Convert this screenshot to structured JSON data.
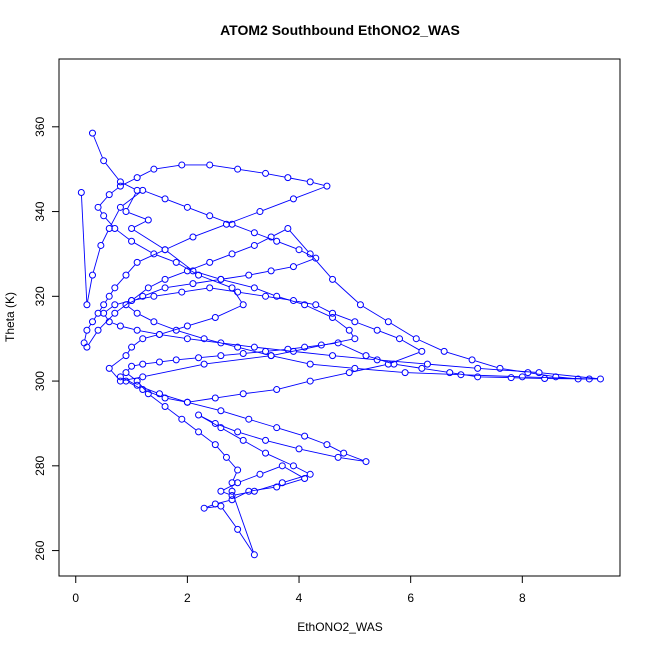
{
  "chart_data": {
    "type": "scatter",
    "title": "ATOM2 Southbound EthONO2_WAS",
    "xlabel": "EthONO2_WAS",
    "ylabel": "Theta (K)",
    "xlim": [
      -0.3,
      9.75
    ],
    "ylim": [
      254,
      376
    ],
    "xticks": [
      0,
      2,
      4,
      6,
      8
    ],
    "yticks": [
      260,
      280,
      300,
      320,
      340,
      360
    ],
    "xtick_labels": [
      "0",
      "2",
      "4",
      "6",
      "8"
    ],
    "ytick_labels": [
      "260",
      "280",
      "300",
      "320",
      "340",
      "360"
    ],
    "color": "#0000ff",
    "grid": false,
    "style": "points connected by lines",
    "series": [
      {
        "name": "EthONO2_WAS",
        "x": [
          0.3,
          0.5,
          0.8,
          1.1,
          0.9,
          1.3,
          1.0,
          1.6,
          2.1,
          2.6,
          3.2,
          3.6,
          4.1,
          4.6,
          4.9,
          5.0,
          3.5,
          2.3,
          1.2,
          0.8,
          0.6,
          0.9,
          1.0,
          1.2,
          1.5,
          2.0,
          2.5,
          3.0,
          2.8,
          2.2,
          1.8,
          1.4,
          1.0,
          0.7,
          0.5,
          0.4,
          0.6,
          0.8,
          1.1,
          1.4,
          1.9,
          2.4,
          2.9,
          3.4,
          3.8,
          4.2,
          4.5,
          3.9,
          3.3,
          2.7,
          2.1,
          1.6,
          1.1,
          0.9,
          0.7,
          0.6,
          0.5,
          0.4,
          0.3,
          0.2,
          0.15,
          0.2,
          0.4,
          0.7,
          1.0,
          1.3,
          1.6,
          2.0,
          2.4,
          2.8,
          3.2,
          3.5,
          3.8,
          4.2,
          4.6,
          5.1,
          5.6,
          6.1,
          6.6,
          7.1,
          7.6,
          8.1,
          8.6,
          9.0,
          9.4,
          8.3,
          7.2,
          6.3,
          5.4,
          4.6,
          3.9,
          3.2,
          2.6,
          2.0,
          1.5,
          1.1,
          0.8,
          0.6,
          0.5,
          0.7,
          1.0,
          1.4,
          1.9,
          2.4,
          2.9,
          3.4,
          3.9,
          4.3,
          4.6,
          5.0,
          5.4,
          5.8,
          6.2,
          5.6,
          4.9,
          4.2,
          3.6,
          3.0,
          2.5,
          2.0,
          1.6,
          1.2,
          0.9,
          0.8,
          1.1,
          1.5,
          2.0,
          2.6,
          3.1,
          3.6,
          4.1,
          4.5,
          4.8,
          5.2,
          4.7,
          4.0,
          3.4,
          2.9,
          2.5,
          2.2,
          2.6,
          3.0,
          3.4,
          3.9,
          4.2,
          3.7,
          3.2,
          2.8,
          2.6,
          2.9,
          3.3,
          3.7,
          4.1,
          3.6,
          3.1,
          2.8,
          2.5,
          2.3,
          2.6,
          2.9,
          3.2,
          2.8,
          2.8,
          2.9,
          2.7,
          2.5,
          2.2,
          1.9,
          1.6,
          1.3,
          1.1,
          0.9,
          1.0,
          1.2,
          1.5,
          1.8,
          2.2,
          2.6,
          3.0,
          3.4,
          3.8,
          4.1,
          4.4,
          4.7,
          5.2,
          5.7,
          6.2,
          6.7,
          7.2,
          7.8,
          8.4,
          9.2,
          8.0,
          6.9,
          5.9,
          5.0,
          4.2,
          3.5,
          2.9,
          2.3,
          1.8,
          1.4,
          1.1,
          0.9,
          1.2,
          1.6,
          2.1,
          2.6,
          3.1,
          3.5,
          3.9,
          4.3,
          4.0,
          3.6,
          3.2,
          2.8,
          2.4,
          2.0,
          1.6,
          1.2,
          0.8,
          0.6,
          0.45,
          0.3,
          0.2,
          0.1
        ],
        "y": [
          358.5,
          352,
          347,
          345,
          340,
          338,
          336,
          331,
          326,
          324,
          322,
          320,
          318,
          315,
          312,
          310,
          306,
          304,
          301,
          300,
          303,
          306,
          308,
          310,
          311,
          313,
          315,
          318,
          322,
          325,
          328,
          330,
          333,
          336,
          339,
          341,
          344,
          346,
          348,
          350,
          351,
          351,
          350,
          349,
          348,
          347,
          346,
          343,
          340,
          337,
          334,
          331,
          328,
          325,
          322,
          320,
          318,
          316,
          314,
          312,
          309,
          308,
          312,
          316,
          319,
          322,
          324,
          326,
          328,
          330,
          332,
          334,
          336,
          330,
          324,
          318,
          314,
          310,
          307,
          305,
          303,
          302,
          301,
          300.5,
          300.5,
          302,
          303,
          304,
          305,
          306,
          307,
          308,
          309,
          310,
          311,
          312,
          313,
          314,
          316,
          318,
          319,
          320,
          321,
          322,
          321,
          320,
          319,
          318,
          316,
          314,
          312,
          310,
          307,
          304,
          302,
          300,
          298,
          297,
          296,
          295,
          296,
          298,
          300,
          301,
          299,
          297,
          295,
          293,
          291,
          289,
          287,
          285,
          283,
          281,
          282,
          284,
          286,
          288,
          290,
          292,
          289,
          286,
          283,
          280,
          278,
          276,
          274,
          273,
          274,
          276,
          278,
          280,
          277,
          275,
          274,
          272,
          271,
          270,
          270.5,
          265,
          259,
          274,
          276,
          279,
          282,
          285,
          288,
          291,
          294,
          297,
          300,
          302,
          303.5,
          304,
          304.5,
          305,
          305.5,
          306,
          306.5,
          307,
          307.5,
          308,
          308.5,
          309,
          306,
          304,
          303,
          302,
          301,
          300.8,
          300.6,
          300.5,
          301,
          301.5,
          302,
          303,
          304,
          306,
          308,
          310,
          312,
          314,
          316,
          318,
          320,
          322,
          323,
          324,
          325,
          326,
          327,
          329,
          331,
          333,
          335,
          337,
          339,
          341,
          343,
          345,
          341,
          336,
          332,
          325,
          318,
          344.5
        ]
      }
    ]
  }
}
